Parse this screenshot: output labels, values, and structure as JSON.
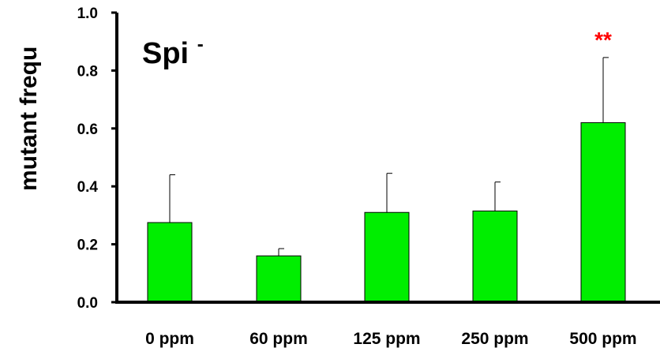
{
  "chart_data": {
    "type": "bar",
    "title": "",
    "panel_label": "Spi",
    "panel_label_superscript": "-",
    "xlabel": "",
    "ylabel": "mutant frequ",
    "categories": [
      "0 ppm",
      "60 ppm",
      "125 ppm",
      "250 ppm",
      "500 ppm"
    ],
    "values": [
      0.275,
      0.16,
      0.31,
      0.315,
      0.62
    ],
    "error_upper": [
      0.44,
      0.185,
      0.445,
      0.415,
      0.845
    ],
    "ylim": [
      0,
      1.0
    ],
    "yticks": [
      "0.0",
      "0.2",
      "0.4",
      "0.6",
      "0.8",
      "1.0"
    ],
    "bar_color": "#00ee00",
    "significance": {
      "category_index": 4,
      "label": "**",
      "color": "#ff0000"
    },
    "grid": false,
    "legend": "none"
  }
}
